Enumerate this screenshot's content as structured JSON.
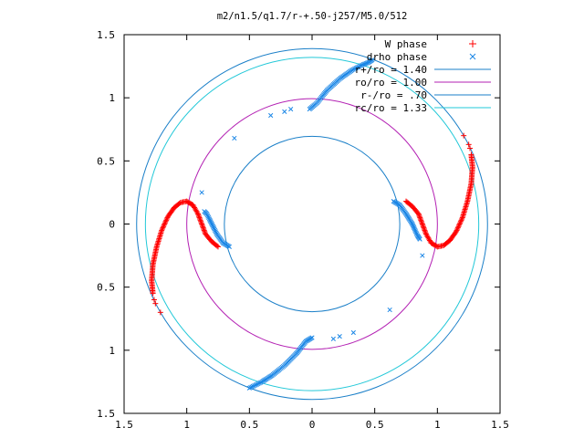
{
  "chart_data": {
    "type": "scatter",
    "title": "m2/n1.5/q1.7/r-+.50-j257/M5.0/512",
    "xlim": [
      -1.5,
      1.5
    ],
    "ylim": [
      -1.5,
      1.5
    ],
    "x_ticks": [
      {
        "value": -1.5,
        "label": "1.5"
      },
      {
        "value": -1,
        "label": "1"
      },
      {
        "value": -0.5,
        "label": "0.5"
      },
      {
        "value": 0,
        "label": "0"
      },
      {
        "value": 0.5,
        "label": "0.5"
      },
      {
        "value": 1,
        "label": "1"
      },
      {
        "value": 1.5,
        "label": "1.5"
      }
    ],
    "y_ticks": [
      {
        "value": 1.5,
        "label": "1.5"
      },
      {
        "value": 1,
        "label": "1"
      },
      {
        "value": 0.5,
        "label": "0.5"
      },
      {
        "value": 0,
        "label": "0"
      },
      {
        "value": -0.5,
        "label": "0.5"
      },
      {
        "value": -1,
        "label": "1"
      },
      {
        "value": -1.5,
        "label": "1.5"
      }
    ],
    "grid": false,
    "legend_position": "top-right",
    "series": [
      {
        "name": "W phase",
        "marker": "plus",
        "color": "#ff0000",
        "dense_arms": [
          [
            [
              -0.75,
              -0.18
            ],
            [
              -0.8,
              -0.14
            ],
            [
              -0.85,
              -0.08
            ],
            [
              -0.88,
              0.0
            ],
            [
              -0.91,
              0.08
            ],
            [
              -0.95,
              0.15
            ],
            [
              -1.0,
              0.18
            ],
            [
              -1.05,
              0.17
            ],
            [
              -1.1,
              0.13
            ],
            [
              -1.15,
              0.06
            ],
            [
              -1.2,
              -0.05
            ],
            [
              -1.24,
              -0.18
            ],
            [
              -1.27,
              -0.32
            ],
            [
              -1.28,
              -0.45
            ],
            [
              -1.27,
              -0.55
            ]
          ],
          [
            [
              0.75,
              0.18
            ],
            [
              0.8,
              0.14
            ],
            [
              0.85,
              0.08
            ],
            [
              0.88,
              0.0
            ],
            [
              0.91,
              -0.08
            ],
            [
              0.95,
              -0.15
            ],
            [
              1.0,
              -0.18
            ],
            [
              1.05,
              -0.17
            ],
            [
              1.1,
              -0.13
            ],
            [
              1.15,
              -0.06
            ],
            [
              1.2,
              0.05
            ],
            [
              1.24,
              0.18
            ],
            [
              1.27,
              0.32
            ],
            [
              1.28,
              0.45
            ],
            [
              1.27,
              0.55
            ]
          ]
        ],
        "points": [
          [
            -1.26,
            -0.6
          ],
          [
            -1.25,
            -0.63
          ],
          [
            -1.21,
            -0.7
          ],
          [
            1.26,
            0.6
          ],
          [
            1.25,
            0.63
          ],
          [
            1.21,
            0.7
          ]
        ]
      },
      {
        "name": "drho phase",
        "marker": "cross",
        "color": "#1a86e6",
        "dense_arms": [
          [
            [
              0.65,
              0.18
            ],
            [
              0.7,
              0.15
            ],
            [
              0.75,
              0.08
            ],
            [
              0.8,
              0.0
            ],
            [
              0.84,
              -0.09
            ],
            [
              0.86,
              -0.12
            ]
          ],
          [
            [
              0.0,
              -0.9
            ],
            [
              -0.05,
              -0.93
            ],
            [
              -0.12,
              -1.02
            ],
            [
              -0.22,
              -1.12
            ],
            [
              -0.32,
              -1.2
            ],
            [
              -0.4,
              -1.25
            ],
            [
              -0.46,
              -1.28
            ],
            [
              -0.5,
              -1.3
            ]
          ],
          [
            [
              -0.66,
              -0.18
            ],
            [
              -0.71,
              -0.15
            ],
            [
              -0.76,
              -0.08
            ],
            [
              -0.8,
              0.0
            ],
            [
              -0.84,
              0.08
            ],
            [
              -0.86,
              0.1
            ]
          ],
          [
            [
              -0.02,
              0.91
            ],
            [
              0.04,
              0.96
            ],
            [
              0.12,
              1.06
            ],
            [
              0.22,
              1.15
            ],
            [
              0.32,
              1.22
            ],
            [
              0.4,
              1.26
            ],
            [
              0.45,
              1.28
            ],
            [
              0.48,
              1.3
            ]
          ]
        ],
        "points": [
          [
            0.88,
            -0.25
          ],
          [
            0.62,
            -0.68
          ],
          [
            0.33,
            -0.86
          ],
          [
            0.22,
            -0.89
          ],
          [
            0.17,
            -0.91
          ],
          [
            -0.88,
            0.25
          ],
          [
            -0.62,
            0.68
          ],
          [
            -0.33,
            0.86
          ],
          [
            -0.22,
            0.89
          ],
          [
            -0.17,
            0.91
          ]
        ]
      }
    ],
    "circles": [
      {
        "name": "r+/ro = 1.40",
        "radius": 1.4,
        "color": "#1a7fc8"
      },
      {
        "name": "ro/ro = 1.00",
        "radius": 1.0,
        "color": "#b320b3"
      },
      {
        "name": "r-/ro = .70",
        "radius": 0.7,
        "color": "#1a7fc8"
      },
      {
        "name": "rc/ro = 1.33",
        "radius": 1.33,
        "color": "#22c8d8"
      }
    ]
  }
}
